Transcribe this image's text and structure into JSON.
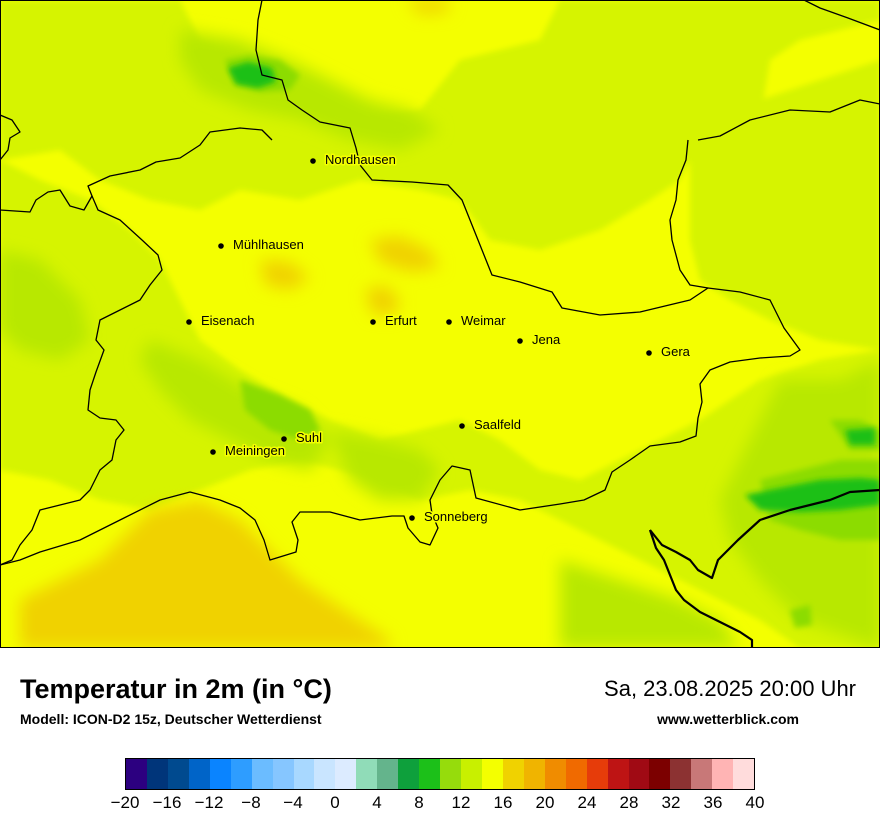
{
  "title": "Temperatur in 2m (in °C)",
  "model": "Modell: ICON-D2 15z, Deutscher Wetterdienst",
  "datetime": "Sa, 23.08.2025 20:00 Uhr",
  "website": "www.wetterblick.com",
  "cities": [
    {
      "name": "Nordhausen"
    },
    {
      "name": "Mühlhausen"
    },
    {
      "name": "Eisenach"
    },
    {
      "name": "Erfurt"
    },
    {
      "name": "Weimar"
    },
    {
      "name": "Jena"
    },
    {
      "name": "Gera"
    },
    {
      "name": "Suhl"
    },
    {
      "name": "Meiningen"
    },
    {
      "name": "Saalfeld"
    },
    {
      "name": "Sonneberg"
    }
  ],
  "colorbar": {
    "colors": [
      "#2c0080",
      "#00357a",
      "#004a8f",
      "#0064c8",
      "#0a84ff",
      "#2e9dff",
      "#6bbcff",
      "#86c6ff",
      "#a8d8ff",
      "#c9e5ff",
      "#dcebff",
      "#90dcb8",
      "#64b48c",
      "#0ea03c",
      "#1cc019",
      "#96dc0c",
      "#c8f000",
      "#f4ff00",
      "#f0d200",
      "#f0b400",
      "#f08c00",
      "#f06a00",
      "#e63c0a",
      "#be1414",
      "#a00a14",
      "#7c0000",
      "#8c3232",
      "#c87878",
      "#ffb4b4",
      "#ffdcdc"
    ],
    "ticks": [
      "−20",
      "−16",
      "−12",
      "−8",
      "−4",
      "0",
      "4",
      "8",
      "12",
      "16",
      "20",
      "24",
      "28",
      "32",
      "36",
      "40"
    ],
    "range": [
      -20,
      40
    ],
    "unit": "°C"
  }
}
